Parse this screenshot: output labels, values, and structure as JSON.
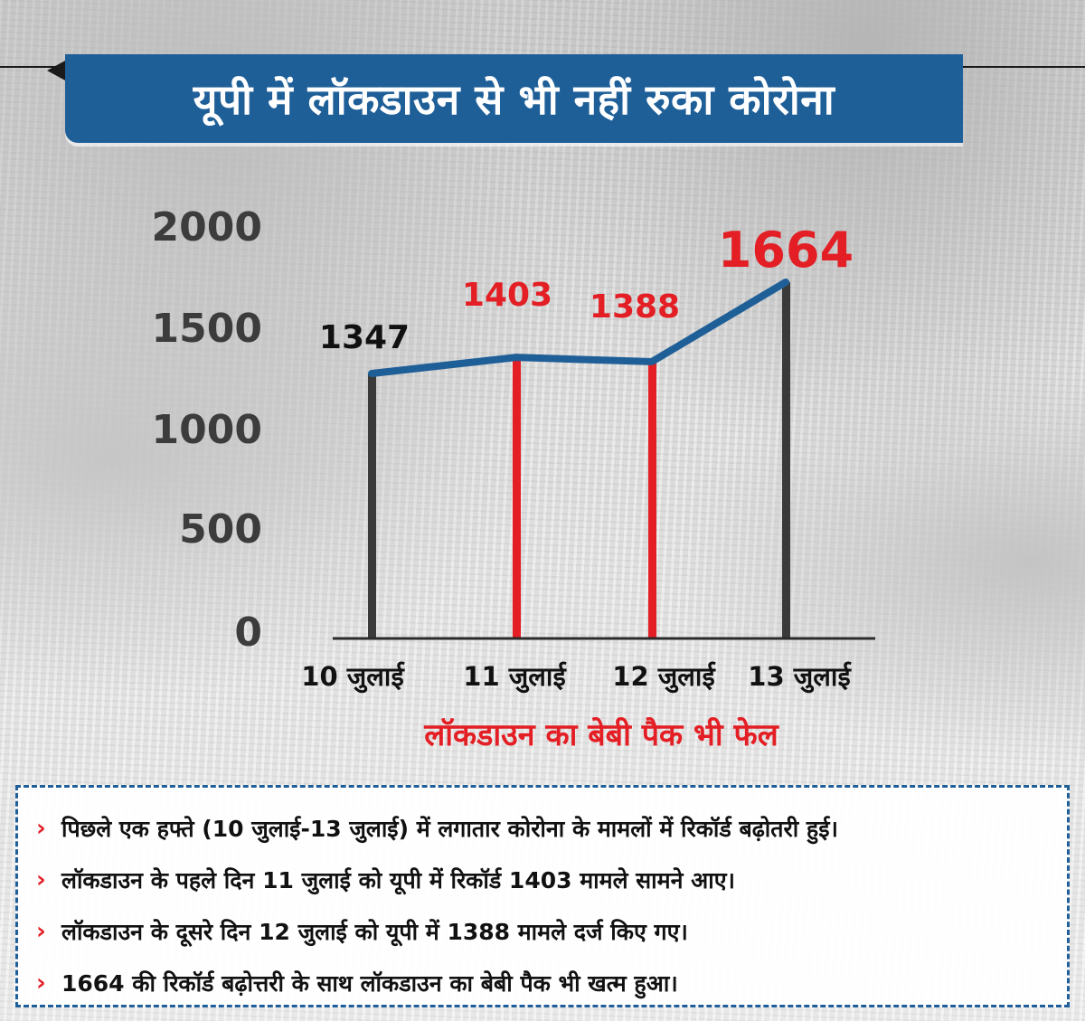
{
  "title": "यूपी में लॉकडाउन से भी नहीं रुका कोरोना",
  "subtitle": "लॉकडाउन का बेबी पैक भी फेल",
  "colors": {
    "banner": "#1f5f98",
    "line": "#1f5f98",
    "highlight": "#e31e24",
    "neutral_bar": "#3a3a3a",
    "axis_text": "#3c3c3c"
  },
  "chart_data": {
    "type": "line",
    "categories": [
      "10 जुलाई",
      "11 जुलाई",
      "12 जुलाई",
      "13 जुलाई"
    ],
    "values": [
      1347,
      1403,
      1388,
      1664
    ],
    "data_labels": [
      "1347",
      "1403",
      "1388",
      "1664"
    ],
    "highlighted": [
      false,
      true,
      true,
      false
    ],
    "yticks": [
      "2000",
      "1500",
      "1000",
      "500",
      "0"
    ],
    "ylim": [
      0,
      2000
    ],
    "grid": false,
    "title": "",
    "xlabel": "",
    "ylabel": ""
  },
  "bullets": [
    {
      "icon": "chevron-right-icon",
      "text": "पिछले एक हफ्ते (10 जुलाई-13 जुलाई) में लगातार कोरोना के मामलों में रिकॉर्ड बढ़ोतरी हुई।"
    },
    {
      "icon": "chevron-right-icon",
      "text": "लॉकडाउन के पहले दिन 11 जुलाई को यूपी में रिकॉर्ड 1403 मामले सामने आए।"
    },
    {
      "icon": "chevron-right-icon",
      "text": "लॉकडाउन के दूसरे दिन 12 जुलाई को यूपी में 1388 मामले दर्ज किए गए।"
    },
    {
      "icon": "chevron-right-icon",
      "text": "1664 की रिकॉर्ड बढ़ोत्तरी के साथ लॉकडाउन का बेबी पैक भी खत्म हुआ।"
    }
  ]
}
